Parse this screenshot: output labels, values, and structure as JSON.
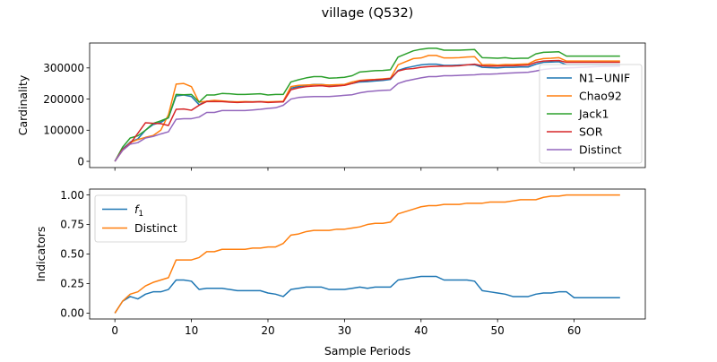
{
  "chart_data": {
    "title": "village (Q532)",
    "xlabel": "Sample Periods",
    "x_ticks": [
      "0",
      "10",
      "20",
      "30",
      "40",
      "50",
      "60"
    ],
    "x_range": [
      -3.3,
      69.3
    ],
    "panels": [
      {
        "type": "line",
        "ylabel": "Cardinality",
        "ylim": [
          -20000,
          380000
        ],
        "y_ticks": [
          {
            "value": 0,
            "label": "0"
          },
          {
            "value": 100000,
            "label": "100000"
          },
          {
            "value": 200000,
            "label": "200000"
          },
          {
            "value": 300000,
            "label": "300000"
          }
        ],
        "legend_position": "lower-right",
        "series": [
          {
            "name": "N1−UNIF",
            "color": "#1f77b4",
            "values": [
              0,
              39000,
              62000,
              72000,
              100000,
              118000,
              125000,
              140000,
              210000,
              213000,
              208000,
              182000,
              193000,
              195000,
              193000,
              192000,
              190000,
              191000,
              191000,
              192000,
              190000,
              191000,
              191000,
              235000,
              240000,
              244000,
              247000,
              247000,
              244000,
              245000,
              247000,
              250000,
              255000,
              256000,
              258000,
              260000,
              263000,
              292000,
              300000,
              305000,
              310000,
              312000,
              312000,
              308000,
              308000,
              309000,
              310000,
              310000,
              302000,
              301000,
              300000,
              302000,
              302000,
              303000,
              303000,
              312000,
              318000,
              319000,
              320000,
              310000,
              310000,
              310000,
              310000,
              310000,
              310000,
              310000,
              310000
            ]
          },
          {
            "name": "Chao92",
            "color": "#ff7f0e",
            "values": [
              0,
              35000,
              60000,
              70000,
              77000,
              83000,
              100000,
              150000,
              248000,
              250000,
              240000,
              190000,
              193000,
              196000,
              194000,
              192000,
              191000,
              192000,
              191000,
              192000,
              191000,
              192000,
              193000,
              240000,
              244000,
              245000,
              246000,
              246000,
              245000,
              246000,
              247000,
              255000,
              260000,
              262000,
              263000,
              265000,
              267000,
              310000,
              320000,
              330000,
              332000,
              340000,
              340000,
              332000,
              332000,
              333000,
              335000,
              336000,
              310000,
              311000,
              309000,
              311000,
              311000,
              312000,
              313000,
              325000,
              330000,
              331000,
              333000,
              322000,
              322000,
              322000,
              322000,
              322000,
              322000,
              322000,
              322000
            ]
          },
          {
            "name": "Jack1",
            "color": "#2ca02c",
            "values": [
              0,
              45000,
              75000,
              82000,
              100000,
              122000,
              130000,
              140000,
              215000,
              214000,
              215000,
              190000,
              213000,
              213000,
              218000,
              217000,
              215000,
              215000,
              216000,
              217000,
              213000,
              215000,
              215000,
              255000,
              262000,
              268000,
              272000,
              272000,
              267000,
              268000,
              270000,
              275000,
              287000,
              289000,
              291000,
              292000,
              294000,
              335000,
              345000,
              355000,
              360000,
              363000,
              363000,
              357000,
              357000,
              357000,
              358000,
              359000,
              333000,
              332000,
              331000,
              333000,
              330000,
              331000,
              331000,
              345000,
              350000,
              351000,
              352000,
              338000,
              338000,
              338000,
              338000,
              338000,
              338000,
              338000,
              338000
            ]
          },
          {
            "name": "SOR",
            "color": "#d62728",
            "values": [
              0,
              38000,
              57000,
              90000,
              124000,
              122000,
              121000,
              115000,
              167000,
              168000,
              164000,
              180000,
              192000,
              192000,
              192000,
              190000,
              189000,
              190000,
              190000,
              191000,
              189000,
              190000,
              191000,
              230000,
              236000,
              240000,
              242000,
              243000,
              240000,
              242000,
              244000,
              250000,
              258000,
              260000,
              262000,
              263000,
              266000,
              290000,
              296000,
              298000,
              302000,
              304000,
              305000,
              306000,
              306000,
              307000,
              310000,
              312000,
              307000,
              306000,
              306000,
              307000,
              307000,
              308000,
              309000,
              318000,
              322000,
              323000,
              324000,
              318000,
              318000,
              318000,
              318000,
              318000,
              318000,
              318000,
              318000
            ]
          },
          {
            "name": "Distinct",
            "color": "#9467bd",
            "values": [
              0,
              35000,
              55000,
              60000,
              75000,
              80000,
              88000,
              95000,
              135000,
              137000,
              137000,
              142000,
              157000,
              157000,
              163000,
              163000,
              163000,
              163000,
              165000,
              167000,
              170000,
              172000,
              180000,
              200000,
              205000,
              207000,
              208000,
              208000,
              208000,
              210000,
              212000,
              214000,
              220000,
              224000,
              226000,
              228000,
              229000,
              250000,
              258000,
              263000,
              268000,
              272000,
              272000,
              275000,
              275000,
              276000,
              277000,
              278000,
              280000,
              280000,
              281000,
              283000,
              284000,
              285000,
              286000,
              290000,
              295000,
              298000,
              299000,
              300000,
              301000,
              302000,
              303000,
              304000,
              305000,
              305000,
              306000
            ]
          }
        ]
      },
      {
        "type": "line",
        "ylabel": "Indicators",
        "ylim": [
          -0.05,
          1.05
        ],
        "y_ticks": [
          {
            "value": 0,
            "label": "0.00"
          },
          {
            "value": 0.25,
            "label": "0.25"
          },
          {
            "value": 0.5,
            "label": "0.50"
          },
          {
            "value": 0.75,
            "label": "0.75"
          },
          {
            "value": 1,
            "label": "1.00"
          }
        ],
        "legend_position": "upper-left",
        "series": [
          {
            "name": "f",
            "name_subscript": "1",
            "color": "#1f77b4",
            "values": [
              0,
              0.1,
              0.14,
              0.12,
              0.16,
              0.18,
              0.18,
              0.2,
              0.28,
              0.28,
              0.27,
              0.2,
              0.21,
              0.21,
              0.21,
              0.2,
              0.19,
              0.19,
              0.19,
              0.19,
              0.17,
              0.16,
              0.14,
              0.2,
              0.21,
              0.22,
              0.22,
              0.22,
              0.2,
              0.2,
              0.2,
              0.21,
              0.22,
              0.21,
              0.22,
              0.22,
              0.22,
              0.28,
              0.29,
              0.3,
              0.31,
              0.31,
              0.31,
              0.28,
              0.28,
              0.28,
              0.28,
              0.27,
              0.19,
              0.18,
              0.17,
              0.16,
              0.14,
              0.14,
              0.14,
              0.16,
              0.17,
              0.17,
              0.18,
              0.18,
              0.13,
              0.13,
              0.13,
              0.13,
              0.13,
              0.13,
              0.13
            ]
          },
          {
            "name": "Distinct",
            "color": "#ff7f0e",
            "values": [
              0,
              0.1,
              0.16,
              0.18,
              0.23,
              0.26,
              0.28,
              0.3,
              0.45,
              0.45,
              0.45,
              0.47,
              0.52,
              0.52,
              0.54,
              0.54,
              0.54,
              0.54,
              0.55,
              0.55,
              0.56,
              0.56,
              0.59,
              0.66,
              0.67,
              0.69,
              0.7,
              0.7,
              0.7,
              0.71,
              0.71,
              0.72,
              0.73,
              0.75,
              0.76,
              0.76,
              0.77,
              0.84,
              0.86,
              0.88,
              0.9,
              0.91,
              0.91,
              0.92,
              0.92,
              0.92,
              0.93,
              0.93,
              0.93,
              0.94,
              0.94,
              0.94,
              0.95,
              0.96,
              0.96,
              0.96,
              0.98,
              0.99,
              0.99,
              1.0,
              1.0,
              1.0,
              1.0,
              1.0,
              1.0,
              1.0,
              1.0
            ]
          }
        ]
      }
    ]
  }
}
